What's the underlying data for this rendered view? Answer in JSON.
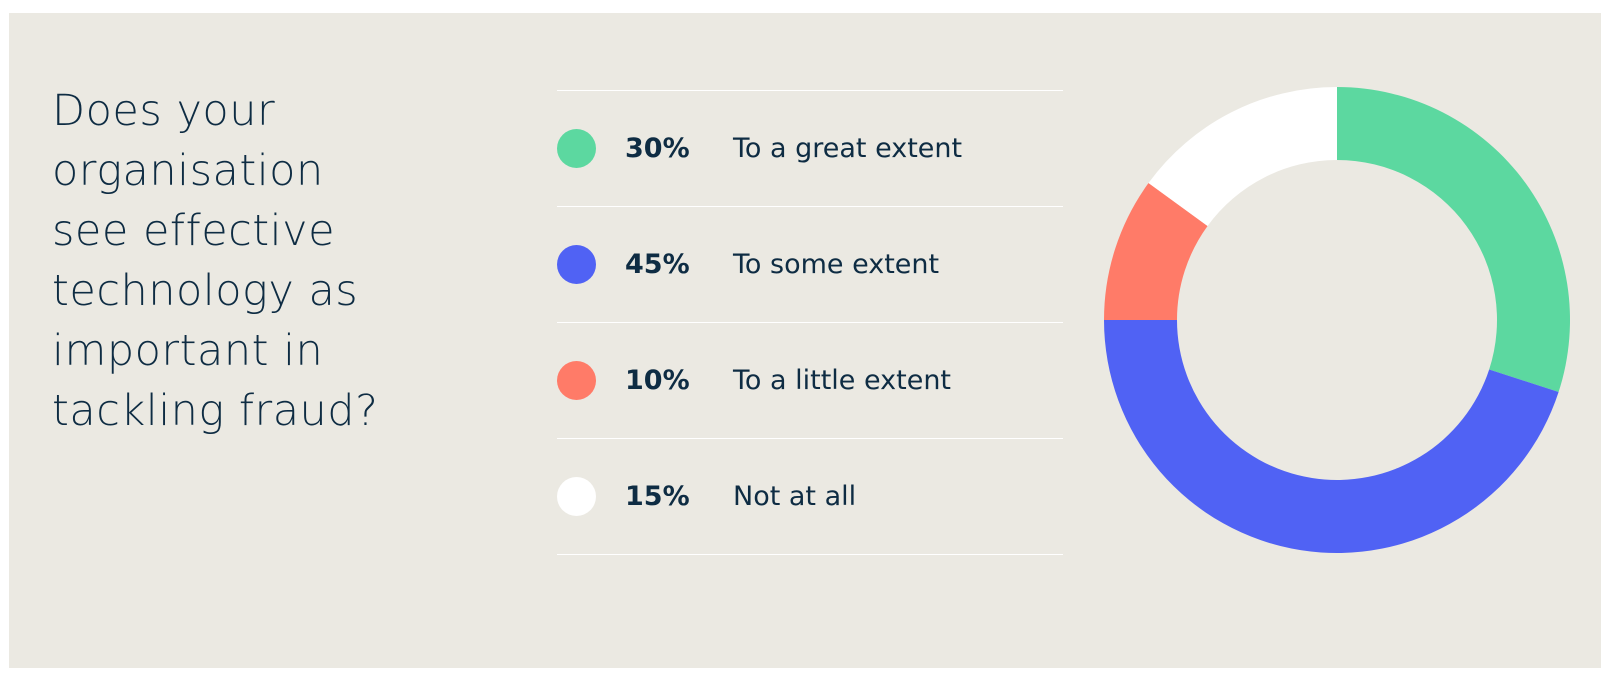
{
  "question": "Does your organisation see effective technology as important in tackling fraud?",
  "question_lines": [
    "Does your",
    "organisation",
    "see effective",
    "technology as",
    "important in",
    "tackling fraud?"
  ],
  "chart_data": {
    "type": "pie",
    "donut": true,
    "title": "Does your organisation see effective technology as important in tackling fraud?",
    "categories": [
      "To a great extent",
      "To some extent",
      "To a little extent",
      "Not at all"
    ],
    "values": [
      30,
      45,
      10,
      15
    ],
    "value_labels": [
      "30%",
      "45%",
      "10%",
      "15%"
    ],
    "colors": [
      "#5cd8a0",
      "#5062f4",
      "#ff7b68",
      "#ffffff"
    ],
    "start": "top",
    "direction": "clockwise",
    "legend_position": "left"
  },
  "colors": {
    "background": "#ebe9e2",
    "text": "#0e2c43",
    "divider": "#ffffff"
  }
}
